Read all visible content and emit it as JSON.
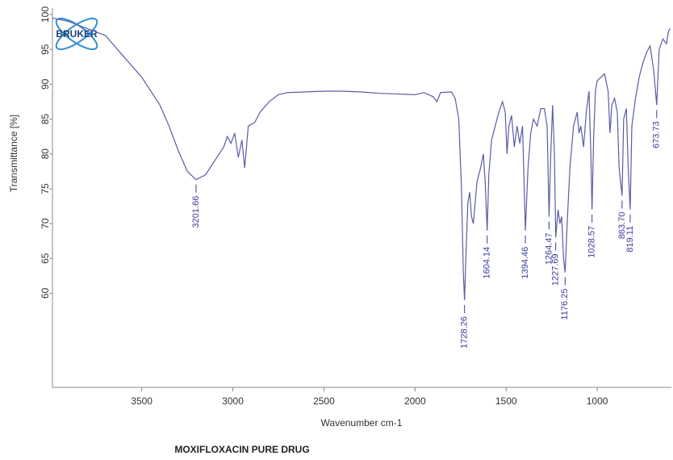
{
  "chart_data": {
    "type": "line",
    "title": "MOXIFLOXACIN PURE DRUG",
    "logo": "BRUKER",
    "x_label": "Wavenumber cm-1",
    "y_label": "Transmittance [%]",
    "xlim": [
      3990,
      593
    ],
    "ylim": [
      46.5,
      100
    ],
    "xticks": [
      3500,
      3000,
      2500,
      2000,
      1500,
      1000
    ],
    "yticks": [
      60,
      65,
      70,
      75,
      80,
      85,
      90,
      95,
      100
    ],
    "color": "#5b5ba8",
    "x": [
      3990,
      3900,
      3800,
      3700,
      3650,
      3600,
      3500,
      3400,
      3350,
      3300,
      3250,
      3201.66,
      3150,
      3100,
      3050,
      3030,
      3010,
      2990,
      2970,
      2950,
      2935,
      2915,
      2880,
      2850,
      2800,
      2750,
      2700,
      2600,
      2500,
      2400,
      2300,
      2200,
      2100,
      2000,
      1950,
      1900,
      1880,
      1860,
      1800,
      1780,
      1760,
      1745,
      1735,
      1728.26,
      1720,
      1710,
      1700,
      1690,
      1680,
      1670,
      1660,
      1640,
      1625,
      1615,
      1604.14,
      1595,
      1580,
      1560,
      1540,
      1520,
      1505,
      1495,
      1485,
      1470,
      1455,
      1440,
      1425,
      1410,
      1394.46,
      1380,
      1365,
      1350,
      1330,
      1310,
      1290,
      1275,
      1264.47,
      1255,
      1245,
      1235,
      1227.69,
      1215,
      1205,
      1195,
      1185,
      1176.25,
      1165,
      1150,
      1130,
      1110,
      1100,
      1090,
      1075,
      1060,
      1045,
      1035,
      1028.57,
      1020,
      1010,
      1000,
      980,
      960,
      940,
      930,
      920,
      905,
      890,
      880,
      863.7,
      855,
      840,
      830,
      819.11,
      810,
      790,
      770,
      750,
      730,
      710,
      690,
      673.73,
      660,
      640,
      620,
      610,
      600
    ],
    "values": [
      99.5,
      99,
      98,
      97,
      95.5,
      94,
      91,
      87,
      84,
      80.5,
      77.5,
      76.3,
      77,
      79,
      81,
      82.5,
      81.5,
      83,
      79.5,
      82,
      78,
      84,
      84.5,
      86,
      87.5,
      88.5,
      88.8,
      88.9,
      89,
      89,
      88.9,
      88.7,
      88.6,
      88.5,
      88.8,
      88.2,
      87.5,
      88.8,
      88.9,
      88,
      85,
      75,
      63,
      59,
      66,
      73,
      74.5,
      71,
      70,
      73,
      76,
      78,
      80,
      76,
      69,
      77,
      82,
      84,
      86,
      87.5,
      86,
      80,
      84,
      85.5,
      81,
      84,
      81.5,
      84,
      69,
      78,
      83,
      85,
      84,
      86.5,
      86.5,
      84,
      71,
      80,
      87,
      80,
      68,
      72,
      70,
      71,
      65,
      63,
      70,
      78,
      84,
      86,
      83,
      84,
      81,
      86,
      89,
      80,
      72,
      82,
      89,
      90.5,
      91,
      91.5,
      89,
      83,
      87,
      88,
      86,
      78,
      74,
      85,
      86.5,
      78,
      72,
      84,
      88,
      91,
      93,
      94.5,
      95.5,
      92,
      87,
      95,
      96.5,
      95.8,
      97.5,
      98
    ],
    "peaks": [
      3201.66,
      1728.26,
      1604.14,
      1394.46,
      1264.47,
      1227.69,
      1176.25,
      1028.57,
      {
        "value": 863.7,
        "label": "863.70"
      },
      819.11,
      673.73
    ]
  }
}
